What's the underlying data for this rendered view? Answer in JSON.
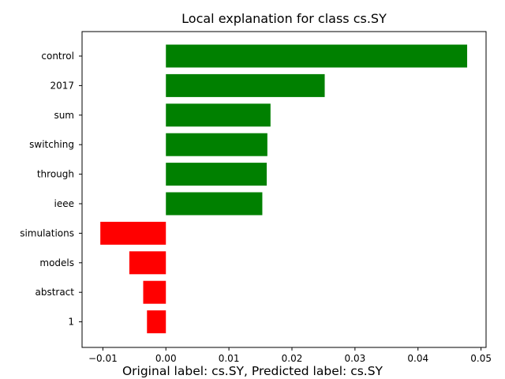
{
  "chart_data": {
    "type": "bar",
    "orientation": "horizontal",
    "title": "Local explanation for class cs.SY",
    "caption": "Original label: cs.SY, Predicted label: cs.SY",
    "xlabel": "",
    "ylabel": "",
    "categories": [
      "control",
      "2017",
      "sum",
      "switching",
      "through",
      "ieee",
      "simulations",
      "models",
      "abstract",
      "1"
    ],
    "values": [
      0.0478,
      0.0252,
      0.0166,
      0.0161,
      0.016,
      0.0153,
      -0.0104,
      -0.0058,
      -0.0036,
      -0.003
    ],
    "xlim": [
      -0.0133,
      0.0508
    ],
    "xticks": [
      -0.01,
      0.0,
      0.01,
      0.02,
      0.03,
      0.04,
      0.05
    ],
    "xtick_labels": [
      "−0.01",
      "0.00",
      "0.01",
      "0.02",
      "0.03",
      "0.04",
      "0.05"
    ],
    "positive_color": "#008000",
    "negative_color": "#ff0000",
    "grid": false,
    "legend": "none"
  }
}
